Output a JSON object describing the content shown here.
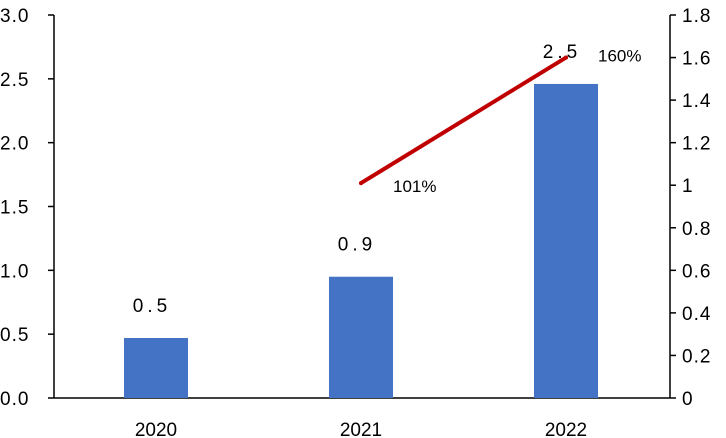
{
  "chart_data": {
    "type": "bar",
    "categories": [
      "2020",
      "2021",
      "2022"
    ],
    "series": [
      {
        "type": "bar",
        "axis": "left",
        "values": [
          0.47,
          0.95,
          2.46
        ],
        "data_labels": [
          "0.5",
          "0.9",
          "2.5"
        ],
        "color": "#4472C4"
      },
      {
        "type": "line",
        "axis": "right",
        "x": [
          "2021",
          "2022"
        ],
        "values": [
          1.01,
          1.6
        ],
        "data_labels": [
          "101%",
          "160%"
        ],
        "color": "#C00000"
      }
    ],
    "y_left": {
      "min": 0,
      "max": 3.0,
      "ticks": [
        "0.0",
        "0.5",
        "1.0",
        "1.5",
        "2.0",
        "2.5",
        "3.0"
      ]
    },
    "y_right": {
      "min": 0,
      "max": 1.8,
      "ticks": [
        "0",
        "0.2",
        "0.4",
        "0.6",
        "0.8",
        "1",
        "1.2",
        "1.4",
        "1.6",
        "1.8"
      ]
    },
    "grid": false,
    "legend": "none"
  }
}
